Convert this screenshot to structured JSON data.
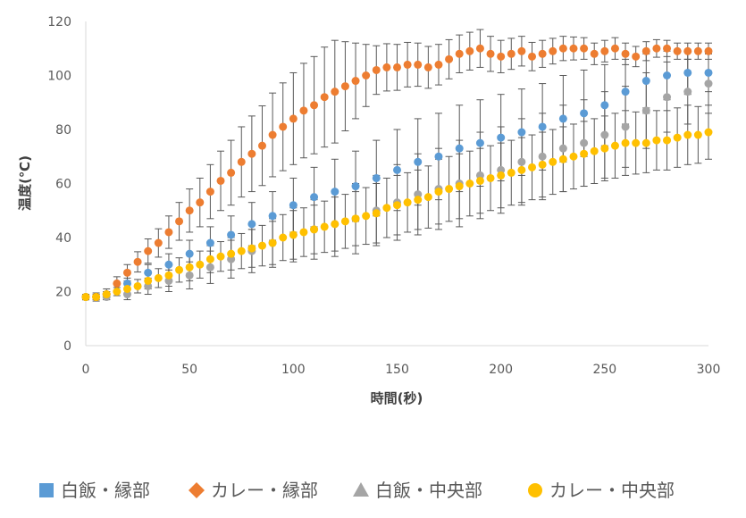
{
  "chart_data": {
    "type": "scatter",
    "xlabel": "時間(秒)",
    "ylabel": "温度(℃)",
    "xlim": [
      0,
      300
    ],
    "ylim": [
      0,
      120
    ],
    "x_ticks": [
      "0",
      "50",
      "100",
      "150",
      "200",
      "250",
      "300"
    ],
    "y_ticks": [
      "0",
      "20",
      "40",
      "60",
      "80",
      "100",
      "120"
    ],
    "grid": false,
    "legend_position": "bottom",
    "error_bars": true,
    "series": [
      {
        "name": "白飯・縁部",
        "color": "#5B9BD5",
        "marker": "square",
        "points": [
          [
            0,
            18
          ],
          [
            10,
            19
          ],
          [
            20,
            23
          ],
          [
            30,
            27
          ],
          [
            40,
            30
          ],
          [
            50,
            34
          ],
          [
            60,
            38
          ],
          [
            70,
            41
          ],
          [
            80,
            45
          ],
          [
            90,
            48
          ],
          [
            100,
            52
          ],
          [
            110,
            55
          ],
          [
            120,
            57
          ],
          [
            130,
            59
          ],
          [
            140,
            62
          ],
          [
            150,
            65
          ],
          [
            160,
            68
          ],
          [
            170,
            70
          ],
          [
            180,
            73
          ],
          [
            190,
            75
          ],
          [
            200,
            77
          ],
          [
            210,
            79
          ],
          [
            220,
            81
          ],
          [
            230,
            84
          ],
          [
            240,
            86
          ],
          [
            250,
            89
          ],
          [
            260,
            94
          ],
          [
            270,
            98
          ],
          [
            280,
            100
          ],
          [
            290,
            101
          ],
          [
            300,
            101
          ]
        ],
        "err": [
          [
            0,
            1
          ],
          [
            10,
            1
          ],
          [
            20,
            2
          ],
          [
            30,
            3
          ],
          [
            40,
            4
          ],
          [
            50,
            5
          ],
          [
            60,
            6
          ],
          [
            70,
            7
          ],
          [
            80,
            8
          ],
          [
            90,
            9
          ],
          [
            100,
            10
          ],
          [
            110,
            11
          ],
          [
            120,
            12
          ],
          [
            130,
            13
          ],
          [
            140,
            14
          ],
          [
            150,
            15
          ],
          [
            160,
            16
          ],
          [
            170,
            16
          ],
          [
            180,
            16
          ],
          [
            190,
            16
          ],
          [
            200,
            16
          ],
          [
            210,
            16
          ],
          [
            220,
            16
          ],
          [
            230,
            16
          ],
          [
            240,
            16
          ],
          [
            250,
            15
          ],
          [
            260,
            12
          ],
          [
            270,
            10
          ],
          [
            280,
            9
          ],
          [
            290,
            8
          ],
          [
            300,
            7
          ]
        ]
      },
      {
        "name": "カレー・縁部",
        "color": "#ED7D31",
        "marker": "diamond",
        "points": [
          [
            0,
            18
          ],
          [
            5,
            18
          ],
          [
            10,
            19
          ],
          [
            15,
            23
          ],
          [
            20,
            27
          ],
          [
            25,
            31
          ],
          [
            30,
            35
          ],
          [
            35,
            38
          ],
          [
            40,
            42
          ],
          [
            45,
            46
          ],
          [
            50,
            50
          ],
          [
            55,
            53
          ],
          [
            60,
            57
          ],
          [
            65,
            61
          ],
          [
            70,
            64
          ],
          [
            75,
            68
          ],
          [
            80,
            71
          ],
          [
            85,
            74
          ],
          [
            90,
            78
          ],
          [
            95,
            81
          ],
          [
            100,
            84
          ],
          [
            105,
            87
          ],
          [
            110,
            89
          ],
          [
            115,
            92
          ],
          [
            120,
            94
          ],
          [
            125,
            96
          ],
          [
            130,
            98
          ],
          [
            135,
            100
          ],
          [
            140,
            102
          ],
          [
            145,
            103
          ],
          [
            150,
            103
          ],
          [
            155,
            104
          ],
          [
            160,
            104
          ],
          [
            165,
            103
          ],
          [
            170,
            104
          ],
          [
            175,
            106
          ],
          [
            180,
            108
          ],
          [
            185,
            109
          ],
          [
            190,
            110
          ],
          [
            195,
            108
          ],
          [
            200,
            107
          ],
          [
            205,
            108
          ],
          [
            210,
            109
          ],
          [
            215,
            107
          ],
          [
            220,
            108
          ],
          [
            225,
            109
          ],
          [
            230,
            110
          ],
          [
            235,
            110
          ],
          [
            240,
            110
          ],
          [
            245,
            108
          ],
          [
            250,
            109
          ],
          [
            255,
            110
          ],
          [
            260,
            108
          ],
          [
            265,
            107
          ],
          [
            270,
            109
          ],
          [
            275,
            110
          ],
          [
            280,
            110
          ],
          [
            285,
            109
          ],
          [
            290,
            109
          ],
          [
            295,
            109
          ],
          [
            300,
            109
          ]
        ],
        "err": [
          [
            0,
            1
          ],
          [
            20,
            3
          ],
          [
            40,
            6
          ],
          [
            60,
            10
          ],
          [
            80,
            14
          ],
          [
            100,
            17
          ],
          [
            120,
            19
          ],
          [
            140,
            9
          ],
          [
            160,
            8
          ],
          [
            180,
            7
          ],
          [
            190,
            7
          ],
          [
            200,
            6
          ],
          [
            220,
            5
          ],
          [
            240,
            4
          ],
          [
            260,
            4
          ],
          [
            280,
            3
          ],
          [
            300,
            3
          ]
        ]
      },
      {
        "name": "白飯・中央部",
        "color": "#A5A5A5",
        "marker": "triangle",
        "points": [
          [
            0,
            18
          ],
          [
            10,
            18
          ],
          [
            20,
            19
          ],
          [
            30,
            22
          ],
          [
            40,
            24
          ],
          [
            50,
            26
          ],
          [
            60,
            29
          ],
          [
            70,
            32
          ],
          [
            80,
            35
          ],
          [
            90,
            38
          ],
          [
            100,
            41
          ],
          [
            110,
            43
          ],
          [
            120,
            45
          ],
          [
            130,
            47
          ],
          [
            140,
            50
          ],
          [
            150,
            53
          ],
          [
            160,
            56
          ],
          [
            170,
            58
          ],
          [
            180,
            60
          ],
          [
            190,
            63
          ],
          [
            200,
            65
          ],
          [
            210,
            68
          ],
          [
            220,
            70
          ],
          [
            230,
            73
          ],
          [
            240,
            75
          ],
          [
            250,
            78
          ],
          [
            260,
            81
          ],
          [
            270,
            87
          ],
          [
            280,
            92
          ],
          [
            290,
            94
          ],
          [
            300,
            97
          ]
        ],
        "err": [
          [
            0,
            1
          ],
          [
            10,
            1
          ],
          [
            20,
            2
          ],
          [
            30,
            3
          ],
          [
            40,
            4
          ],
          [
            50,
            5
          ],
          [
            60,
            6
          ],
          [
            70,
            7
          ],
          [
            80,
            8
          ],
          [
            90,
            9
          ],
          [
            100,
            10
          ],
          [
            110,
            11
          ],
          [
            120,
            12
          ],
          [
            130,
            13
          ],
          [
            140,
            13
          ],
          [
            150,
            14
          ],
          [
            160,
            15
          ],
          [
            170,
            15
          ],
          [
            180,
            16
          ],
          [
            190,
            16
          ],
          [
            200,
            16
          ],
          [
            210,
            16
          ],
          [
            220,
            16
          ],
          [
            230,
            16
          ],
          [
            240,
            16
          ],
          [
            250,
            16
          ],
          [
            260,
            15
          ],
          [
            270,
            14
          ],
          [
            280,
            13
          ],
          [
            290,
            12
          ],
          [
            300,
            11
          ]
        ]
      },
      {
        "name": "カレー・中央部",
        "color": "#FFC000",
        "marker": "circle",
        "points": [
          [
            0,
            18
          ],
          [
            5,
            18
          ],
          [
            10,
            19
          ],
          [
            15,
            20
          ],
          [
            20,
            21
          ],
          [
            25,
            22
          ],
          [
            30,
            24
          ],
          [
            35,
            25
          ],
          [
            40,
            26
          ],
          [
            45,
            28
          ],
          [
            50,
            29
          ],
          [
            55,
            30
          ],
          [
            60,
            32
          ],
          [
            65,
            33
          ],
          [
            70,
            34
          ],
          [
            75,
            35
          ],
          [
            80,
            36
          ],
          [
            85,
            37
          ],
          [
            90,
            38
          ],
          [
            95,
            40
          ],
          [
            100,
            41
          ],
          [
            105,
            42
          ],
          [
            110,
            43
          ],
          [
            115,
            44
          ],
          [
            120,
            45
          ],
          [
            125,
            46
          ],
          [
            130,
            47
          ],
          [
            135,
            48
          ],
          [
            140,
            49
          ],
          [
            145,
            51
          ],
          [
            150,
            52
          ],
          [
            155,
            53
          ],
          [
            160,
            54
          ],
          [
            165,
            55
          ],
          [
            170,
            57
          ],
          [
            175,
            58
          ],
          [
            180,
            59
          ],
          [
            185,
            60
          ],
          [
            190,
            61
          ],
          [
            195,
            62
          ],
          [
            200,
            63
          ],
          [
            205,
            64
          ],
          [
            210,
            65
          ],
          [
            215,
            66
          ],
          [
            220,
            67
          ],
          [
            225,
            68
          ],
          [
            230,
            69
          ],
          [
            235,
            70
          ],
          [
            240,
            71
          ],
          [
            245,
            72
          ],
          [
            250,
            73
          ],
          [
            255,
            74
          ],
          [
            260,
            75
          ],
          [
            265,
            75
          ],
          [
            270,
            75
          ],
          [
            275,
            76
          ],
          [
            280,
            76
          ],
          [
            285,
            77
          ],
          [
            290,
            78
          ],
          [
            295,
            78
          ],
          [
            300,
            79
          ]
        ],
        "err": [
          [
            0,
            1
          ],
          [
            10,
            1
          ],
          [
            20,
            2
          ],
          [
            30,
            3
          ],
          [
            40,
            4
          ],
          [
            50,
            5
          ],
          [
            60,
            5
          ],
          [
            70,
            6
          ],
          [
            80,
            7
          ],
          [
            90,
            8
          ],
          [
            100,
            9
          ],
          [
            110,
            9
          ],
          [
            120,
            10
          ],
          [
            130,
            10
          ],
          [
            140,
            11
          ],
          [
            150,
            11
          ],
          [
            160,
            11
          ],
          [
            170,
            12
          ],
          [
            180,
            12
          ],
          [
            190,
            12
          ],
          [
            200,
            12
          ],
          [
            210,
            12
          ],
          [
            220,
            12
          ],
          [
            230,
            12
          ],
          [
            240,
            12
          ],
          [
            250,
            12
          ],
          [
            260,
            12
          ],
          [
            270,
            11
          ],
          [
            280,
            11
          ],
          [
            290,
            11
          ],
          [
            300,
            10
          ]
        ]
      }
    ]
  }
}
